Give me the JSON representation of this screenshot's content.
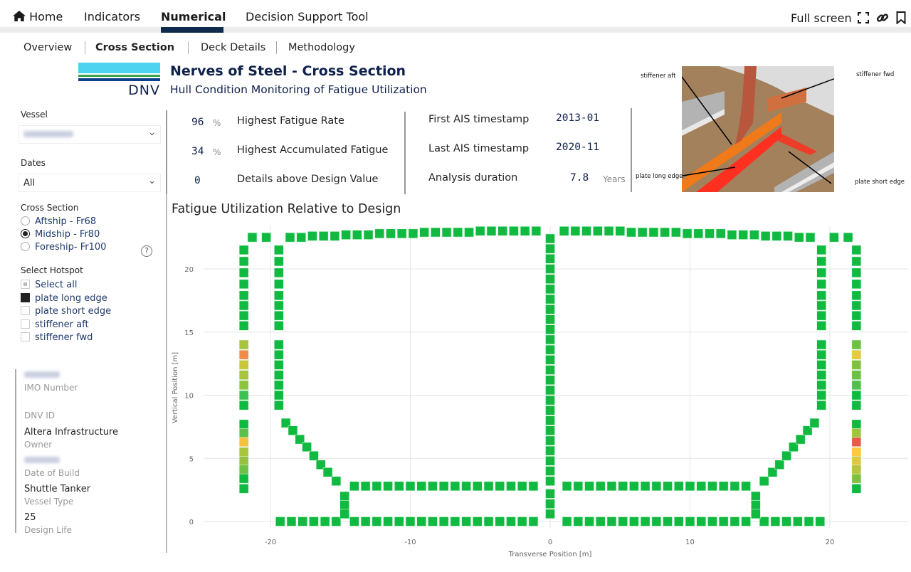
{
  "nav": {
    "home": "Home",
    "items": [
      "Indicators",
      "Numerical",
      "Decision Support Tool"
    ],
    "active": "Numerical",
    "full_screen": "Full screen",
    "icons": [
      "home-icon",
      "fullscreen-icon",
      "link-icon",
      "bookmark-icon"
    ]
  },
  "subnav": {
    "items": [
      "Overview",
      "Cross Section",
      "Deck Details",
      "Methodology"
    ],
    "active": "Cross Section"
  },
  "header": {
    "logo_text": "DNV",
    "title": "Nerves of Steel - Cross Section",
    "subtitle": "Hull Condition Monitoring of Fatigue Utilization"
  },
  "filters": {
    "vessel_label": "Vessel",
    "dates_label": "Dates",
    "dates_value": "All",
    "cross_section_label": "Cross Section",
    "cross_sections": [
      {
        "label": "Aftship - Fr68",
        "selected": false
      },
      {
        "label": "Midship - Fr80",
        "selected": true
      },
      {
        "label": "Foreship- Fr100",
        "selected": false
      }
    ],
    "help_icon": "?",
    "hotspot_label": "Select Hotspot",
    "hotspots": [
      {
        "label": "Select all",
        "state": "partial"
      },
      {
        "label": "plate long edge",
        "state": "checked"
      },
      {
        "label": "plate short edge",
        "state": "unchecked"
      },
      {
        "label": "stiffener aft",
        "state": "unchecked"
      },
      {
        "label": "stiffener fwd",
        "state": "unchecked"
      }
    ]
  },
  "vessel_info": [
    {
      "key": "IMO Number",
      "value": null,
      "blurred": true
    },
    {
      "key": "DNV ID",
      "value": ""
    },
    {
      "key": "Owner",
      "value": "Altera Infrastructure"
    },
    {
      "key": "Date of Build",
      "value": null,
      "blurred": true
    },
    {
      "key": "Vessel Type",
      "value": "Shuttle Tanker"
    },
    {
      "key": "Design Life",
      "value": "25"
    }
  ],
  "kpis_left": [
    {
      "value": "96",
      "unit": "%",
      "label": "Highest Fatigue Rate"
    },
    {
      "value": "34",
      "unit": "%",
      "label": "Highest Accumulated Fatigue"
    },
    {
      "value": "0",
      "unit": "",
      "label": "Details above Design Value"
    }
  ],
  "kpis_right": [
    {
      "label": "First AIS timestamp",
      "value": "2013-01",
      "unit": ""
    },
    {
      "label": "Last AIS timestamp",
      "value": "2020-11",
      "unit": ""
    },
    {
      "label": "Analysis duration",
      "value": "7.8",
      "unit": "Years"
    }
  ],
  "diagram": {
    "labels": {
      "stiffener_aft": "stiffener aft",
      "stiffener_fwd": "stiffener fwd",
      "plate_long_edge": "plate long edge",
      "plate_short_edge": "plate short edge"
    }
  },
  "colors": {
    "default_point": "#10b940",
    "accent": "#0f204b"
  },
  "chart_data": {
    "type": "scatter",
    "title": "Fatigue Utilization Relative to Design",
    "xlabel": "Transverse Position [m]",
    "ylabel": "Vertical Position [m]",
    "xlim": [
      -27,
      25.5
    ],
    "ylim": [
      -1,
      23.4
    ],
    "xticks": [
      -20,
      -10,
      0,
      10,
      20
    ],
    "yticks": [
      0,
      5,
      10,
      15,
      20
    ],
    "grid": true,
    "marker": "square",
    "default_color": "#10b940",
    "members": [
      {
        "x": [
          -21.3,
          -20.3,
          20.3,
          21.3
        ],
        "y": [
          22.5,
          22.5,
          22.5,
          22.5
        ]
      },
      {
        "x": [
          -18.6,
          -17.8,
          -17.0,
          -16.2,
          -15.4,
          -14.6,
          -13.8,
          -13.0,
          -12.2,
          -11.4,
          -10.6,
          -9.8,
          -9.0,
          -8.2,
          -7.4,
          -6.6,
          -5.8,
          -5.0,
          -4.2,
          -3.4,
          -2.6,
          -1.8,
          -1.0
        ],
        "y": [
          22.5,
          22.5,
          22.6,
          22.6,
          22.6,
          22.7,
          22.7,
          22.7,
          22.8,
          22.8,
          22.8,
          22.8,
          22.9,
          22.9,
          22.9,
          22.9,
          22.9,
          23.0,
          23.0,
          23.0,
          23.0,
          23.0,
          23.0
        ]
      },
      {
        "x": [
          1.0,
          1.8,
          2.6,
          3.4,
          4.2,
          5.0,
          5.8,
          6.6,
          7.4,
          8.2,
          9.0,
          9.8,
          10.6,
          11.4,
          12.2,
          13.0,
          13.8,
          14.6,
          15.4,
          16.2,
          17.0,
          17.8,
          18.6
        ],
        "y": [
          23.0,
          23.0,
          23.0,
          23.0,
          23.0,
          23.0,
          22.9,
          22.9,
          22.9,
          22.9,
          22.9,
          22.8,
          22.8,
          22.8,
          22.8,
          22.7,
          22.7,
          22.7,
          22.6,
          22.6,
          22.6,
          22.5,
          22.5
        ]
      },
      {
        "x": [
          -21.9,
          -21.9,
          -21.9,
          -21.9,
          -21.9,
          -21.9,
          -21.9,
          -21.9,
          -21.9,
          -21.9,
          -21.9,
          -21.9,
          -21.9,
          -21.9,
          -21.9,
          -21.9,
          -21.9,
          -21.9,
          -21.9,
          -21.9,
          -21.9,
          -21.9,
          -21.9
        ],
        "y": [
          21.5,
          20.6,
          19.7,
          18.8,
          17.9,
          17.1,
          16.3,
          15.5,
          14.0,
          13.2,
          12.4,
          11.6,
          10.8,
          10.0,
          9.2,
          7.7,
          7.0,
          6.3,
          5.5,
          4.8,
          4.1,
          3.4,
          2.6
        ],
        "colors": [
          null,
          null,
          null,
          null,
          null,
          null,
          null,
          null,
          "#a8c43c",
          "#f28a4a",
          "#c8c83a",
          "#a8c43c",
          "#8cc43c",
          "#3cc050",
          null,
          null,
          "#5cc04a",
          "#f8c03c",
          "#a8c43c",
          "#98c040",
          "#6cc044",
          null,
          null
        ]
      },
      {
        "x": [
          21.9,
          21.9,
          21.9,
          21.9,
          21.9,
          21.9,
          21.9,
          21.9,
          21.9,
          21.9,
          21.9,
          21.9,
          21.9,
          21.9,
          21.9,
          21.9,
          21.9,
          21.9,
          21.9,
          21.9,
          21.9,
          21.9,
          21.9
        ],
        "y": [
          21.5,
          20.6,
          19.7,
          18.8,
          17.9,
          17.1,
          16.3,
          15.5,
          14.0,
          13.2,
          12.4,
          11.6,
          10.8,
          10.0,
          9.2,
          7.7,
          7.0,
          6.3,
          5.5,
          4.8,
          4.1,
          3.4,
          2.6
        ],
        "colors": [
          null,
          null,
          null,
          null,
          null,
          null,
          null,
          null,
          "#6cc044",
          "#e8c83c",
          "#80c040",
          "#6cc044",
          "#50c048",
          null,
          null,
          null,
          "#a0c43c",
          "#e85a4a",
          "#ffc83c",
          "#e0c83c",
          "#b8c43c",
          "#80c040",
          null
        ]
      },
      {
        "x": [
          -19.4,
          -19.4,
          -19.4,
          -19.4,
          -19.4,
          -19.4,
          -19.4,
          -19.4,
          -19.4,
          -19.4,
          -19.4,
          -19.4,
          -19.4,
          -19.4,
          -19.4
        ],
        "y": [
          21.5,
          20.6,
          19.7,
          18.8,
          17.9,
          17.1,
          16.3,
          15.5,
          14.0,
          13.2,
          12.4,
          11.6,
          10.8,
          10.0,
          9.2
        ]
      },
      {
        "x": [
          19.4,
          19.4,
          19.4,
          19.4,
          19.4,
          19.4,
          19.4,
          19.4,
          19.4,
          19.4,
          19.4,
          19.4,
          19.4,
          19.4,
          19.4
        ],
        "y": [
          21.5,
          20.6,
          19.7,
          18.8,
          17.9,
          17.1,
          16.3,
          15.5,
          14.0,
          13.2,
          12.4,
          11.6,
          10.8,
          10.0,
          9.2
        ]
      },
      {
        "x": [
          0,
          0,
          0,
          0,
          0,
          0,
          0,
          0,
          0,
          0,
          0,
          0,
          0,
          0,
          0,
          0,
          0,
          0,
          0,
          0,
          0,
          0,
          0,
          0,
          0,
          0,
          0,
          0
        ],
        "y": [
          22.4,
          21.6,
          20.8,
          20.0,
          19.2,
          18.4,
          17.6,
          16.8,
          16.0,
          15.2,
          14.4,
          13.6,
          12.8,
          12.0,
          11.2,
          10.4,
          9.6,
          8.8,
          8.0,
          7.2,
          6.4,
          5.6,
          4.8,
          4.0,
          3.2,
          2.2,
          1.4,
          0.6
        ]
      },
      {
        "x": [
          -14.0,
          -13.2,
          -12.4,
          -11.6,
          -10.8,
          -10.0,
          -9.2,
          -8.4,
          -7.6,
          -6.8,
          -6.0,
          -5.2,
          -4.4,
          -3.6,
          -2.8,
          -2.0,
          -1.2,
          1.2,
          2.0,
          2.8,
          3.6,
          4.4,
          5.2,
          6.0,
          6.8,
          7.6,
          8.4,
          9.2,
          10.0,
          10.8,
          11.6,
          12.4,
          13.2,
          14.0
        ],
        "y": [
          2.8,
          2.8,
          2.8,
          2.8,
          2.8,
          2.8,
          2.8,
          2.8,
          2.8,
          2.8,
          2.8,
          2.8,
          2.8,
          2.8,
          2.8,
          2.8,
          2.8,
          2.8,
          2.8,
          2.8,
          2.8,
          2.8,
          2.8,
          2.8,
          2.8,
          2.8,
          2.8,
          2.8,
          2.8,
          2.8,
          2.8,
          2.8,
          2.8,
          2.8
        ]
      },
      {
        "x": [
          -19.3,
          -18.5,
          -17.7,
          -16.9,
          -16.1,
          -15.3,
          -14.0,
          -13.2,
          -12.4,
          -11.6,
          -10.8,
          -10.0,
          -9.2,
          -8.4,
          -7.6,
          -6.8,
          -6.0,
          -5.2,
          -4.4,
          -3.6,
          -2.8,
          -2.0,
          -1.2,
          1.2,
          2.0,
          2.8,
          3.6,
          4.4,
          5.2,
          6.0,
          6.8,
          7.6,
          8.4,
          9.2,
          10.0,
          10.8,
          11.6,
          12.4,
          13.2,
          14.0,
          15.3,
          16.1,
          16.9,
          17.7,
          18.5,
          19.3
        ],
        "y": [
          0,
          0,
          0,
          0,
          0,
          0,
          0,
          0,
          0,
          0,
          0,
          0,
          0,
          0,
          0,
          0,
          0,
          0,
          0,
          0,
          0,
          0,
          0,
          0,
          0,
          0,
          0,
          0,
          0,
          0,
          0,
          0,
          0,
          0,
          0,
          0,
          0,
          0,
          0,
          0,
          0,
          0,
          0,
          0,
          0,
          0
        ]
      },
      {
        "x": [
          -18.9,
          -18.4,
          -17.9,
          -17.4,
          -16.9,
          -16.4,
          -15.9,
          -15.3,
          15.3,
          15.9,
          16.4,
          16.9,
          17.4,
          17.9,
          18.4,
          18.9
        ],
        "y": [
          7.8,
          7.2,
          6.5,
          5.9,
          5.2,
          4.5,
          3.9,
          3.2,
          3.2,
          3.9,
          4.5,
          5.2,
          5.9,
          6.5,
          7.2,
          7.8
        ]
      },
      {
        "x": [
          -14.7,
          -14.7,
          -14.7,
          14.7,
          14.7,
          14.7
        ],
        "y": [
          2.0,
          1.3,
          0.6,
          2.0,
          1.3,
          0.6
        ]
      }
    ]
  }
}
